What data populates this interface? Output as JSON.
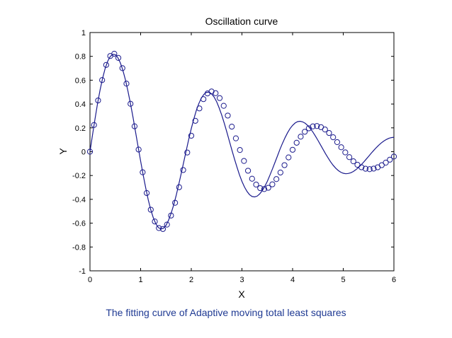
{
  "caption": "The fitting curve of Adaptive moving total least squares",
  "chart_data": {
    "type": "line",
    "title": "Oscillation curve",
    "xlabel": "X",
    "ylabel": "Y",
    "xlim": [
      0,
      6
    ],
    "ylim": [
      -1,
      1
    ],
    "xticks": [
      0,
      1,
      2,
      3,
      4,
      5,
      6
    ],
    "yticks": [
      1,
      0.8,
      0.6,
      0.4,
      0.2,
      0,
      -0.2,
      -0.4,
      -0.6,
      -0.8,
      -1
    ],
    "xtick_labels": [
      "0",
      "1",
      "2",
      "3",
      "4",
      "5",
      "6"
    ],
    "ytick_labels": [
      "1",
      "0.8",
      "0.6",
      "0.4",
      "0.2",
      "0",
      "-0.2",
      "-0.4",
      "-0.6",
      "-0.8",
      "-1"
    ],
    "grid": false,
    "line_color": "#1a1a8c",
    "marker_color": "#1a1a8c",
    "series": [
      {
        "style": "line",
        "x": [
          0,
          0.05,
          0.1,
          0.15,
          0.2,
          0.25,
          0.3,
          0.35,
          0.4,
          0.45,
          0.5,
          0.55,
          0.6,
          0.65,
          0.7,
          0.75,
          0.8,
          0.85,
          0.9,
          0.95,
          1,
          1.05,
          1.1,
          1.15,
          1.2,
          1.25,
          1.3,
          1.35,
          1.4,
          1.45,
          1.5,
          1.55,
          1.6,
          1.65,
          1.7,
          1.75,
          1.8,
          1.85,
          1.9,
          1.95,
          2,
          2.05,
          2.1,
          2.15,
          2.2,
          2.25,
          2.3,
          2.35,
          2.4,
          2.45,
          2.5,
          2.55,
          2.6,
          2.65,
          2.7,
          2.75,
          2.8,
          2.85,
          2.9,
          2.95,
          3,
          3.05,
          3.1,
          3.15,
          3.2,
          3.25,
          3.3,
          3.35,
          3.4,
          3.45,
          3.5,
          3.55,
          3.6,
          3.65,
          3.7,
          3.75,
          3.8,
          3.85,
          3.9,
          3.95,
          4,
          4.05,
          4.1,
          4.15,
          4.2,
          4.25,
          4.3,
          4.35,
          4.4,
          4.45,
          4.5,
          4.55,
          4.6,
          4.65,
          4.7,
          4.75,
          4.8,
          4.85,
          4.9,
          4.95,
          5,
          5.05,
          5.1,
          5.15,
          5.2,
          5.25,
          5.3,
          5.35,
          5.4,
          5.45,
          5.5,
          5.55,
          5.6,
          5.65,
          5.7,
          5.75,
          5.8,
          5.85,
          5.9,
          5.95,
          6
        ],
        "y": [
          0.0,
          0.141,
          0.278,
          0.405,
          0.519,
          0.618,
          0.698,
          0.759,
          0.799,
          0.817,
          0.814,
          0.79,
          0.745,
          0.682,
          0.602,
          0.508,
          0.402,
          0.287,
          0.166,
          0.043,
          -0.079,
          -0.196,
          -0.305,
          -0.403,
          -0.487,
          -0.555,
          -0.605,
          -0.637,
          -0.649,
          -0.643,
          -0.619,
          -0.577,
          -0.52,
          -0.45,
          -0.369,
          -0.28,
          -0.185,
          -0.088,
          0.01,
          0.104,
          0.194,
          0.275,
          0.346,
          0.405,
          0.451,
          0.482,
          0.498,
          0.499,
          0.486,
          0.459,
          0.419,
          0.368,
          0.308,
          0.24,
          0.167,
          0.092,
          0.016,
          -0.058,
          -0.128,
          -0.192,
          -0.249,
          -0.297,
          -0.334,
          -0.361,
          -0.376,
          -0.38,
          -0.373,
          -0.355,
          -0.328,
          -0.292,
          -0.249,
          -0.2,
          -0.147,
          -0.092,
          -0.036,
          0.019,
          0.07,
          0.117,
          0.159,
          0.194,
          0.221,
          0.241,
          0.252,
          0.255,
          0.25,
          0.238,
          0.219,
          0.194,
          0.165,
          0.131,
          0.095,
          0.058,
          0.02,
          -0.017,
          -0.052,
          -0.085,
          -0.114,
          -0.138,
          -0.158,
          -0.172,
          -0.181,
          -0.185,
          -0.183,
          -0.177,
          -0.166,
          -0.151,
          -0.133,
          -0.112,
          -0.089,
          -0.064,
          -0.039,
          -0.014,
          0.01,
          0.033,
          0.054,
          0.073,
          0.089,
          0.102,
          0.112,
          0.118,
          0.121
        ]
      },
      {
        "style": "markers",
        "x": [
          0.0,
          0.08,
          0.16,
          0.24,
          0.32,
          0.4,
          0.48,
          0.56,
          0.64,
          0.72,
          0.8,
          0.88,
          0.96,
          1.04,
          1.12,
          1.2,
          1.28,
          1.36,
          1.44,
          1.52,
          1.6,
          1.68,
          1.76,
          1.84,
          1.92,
          2.0,
          2.08,
          2.16,
          2.24,
          2.32,
          2.4,
          2.48,
          2.56,
          2.64,
          2.72,
          2.8,
          2.88,
          2.96,
          3.04,
          3.12,
          3.2,
          3.28,
          3.36,
          3.44,
          3.52,
          3.6,
          3.68,
          3.76,
          3.84,
          3.92,
          4.0,
          4.08,
          4.16,
          4.24,
          4.32,
          4.4,
          4.48,
          4.56,
          4.64,
          4.72,
          4.8,
          4.88,
          4.96,
          5.04,
          5.12,
          5.2,
          5.28,
          5.36,
          5.44,
          5.52,
          5.6,
          5.68,
          5.76,
          5.84,
          5.92,
          6.0
        ],
        "y": [
          0.0,
          0.224,
          0.43,
          0.601,
          0.728,
          0.803,
          0.822,
          0.787,
          0.701,
          0.571,
          0.402,
          0.213,
          0.018,
          -0.173,
          -0.347,
          -0.487,
          -0.586,
          -0.641,
          -0.649,
          -0.612,
          -0.536,
          -0.429,
          -0.298,
          -0.154,
          -0.007,
          0.134,
          0.259,
          0.363,
          0.441,
          0.489,
          0.505,
          0.491,
          0.45,
          0.385,
          0.303,
          0.21,
          0.112,
          0.014,
          -0.078,
          -0.16,
          -0.227,
          -0.276,
          -0.306,
          -0.314,
          -0.303,
          -0.274,
          -0.23,
          -0.175,
          -0.113,
          -0.048,
          0.016,
          0.075,
          0.126,
          0.167,
          0.196,
          0.212,
          0.215,
          0.206,
          0.186,
          0.157,
          0.121,
          0.08,
          0.037,
          -0.006,
          -0.046,
          -0.081,
          -0.11,
          -0.131,
          -0.143,
          -0.147,
          -0.142,
          -0.131,
          -0.113,
          -0.092,
          -0.067,
          -0.041
        ]
      }
    ]
  }
}
